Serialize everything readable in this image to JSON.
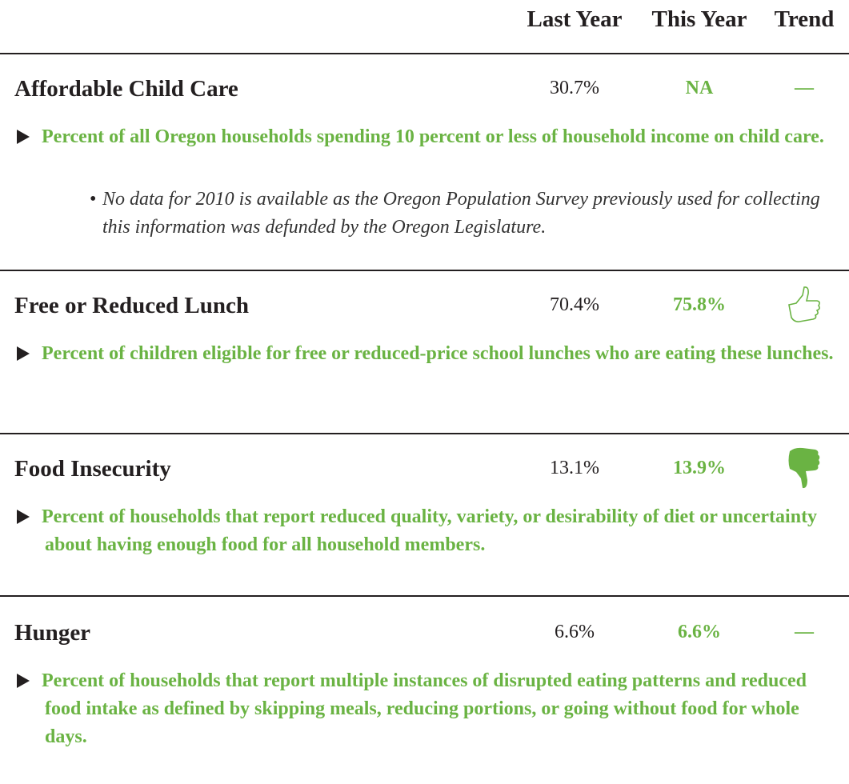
{
  "header": {
    "columns": [
      "Last Year",
      "This Year",
      "Trend"
    ]
  },
  "rows": [
    {
      "name": "Affordable Child Care",
      "last_year": "30.7%",
      "this_year": "NA",
      "trend": "—",
      "description": "Percent of all Oregon households spending 10 percent or less of household income on child care.",
      "note": "No data for 2010 is available as the Oregon Population Survey previously used for collecting this information was defunded by the Oregon Legislature."
    },
    {
      "name": "Free or Reduced Lunch",
      "last_year": "70.4%",
      "this_year": "75.8%",
      "description": "Percent of children eligible for free or reduced-price school lunches who are eating these lunches."
    },
    {
      "name": "Food Insecurity",
      "last_year": "13.1%",
      "this_year": "13.9%",
      "description": "Percent of households that report reduced quality, variety, or desirability of diet or uncertainty about having enough food for all household members."
    },
    {
      "name": "Hunger",
      "last_year": "6.6%",
      "this_year": "6.6%",
      "trend": "—",
      "description": "Percent of households that report multiple instances of disrupted eating patterns and reduced food intake as defined by skipping meals, reducing portions, or going without food for whole days."
    }
  ]
}
